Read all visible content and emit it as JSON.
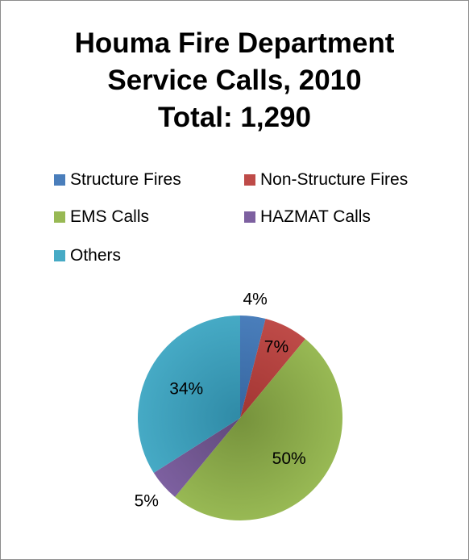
{
  "chart_data": {
    "type": "pie",
    "title_lines": [
      "Houma Fire Department",
      "Service Calls, 2010",
      "Total: 1,290"
    ],
    "categories": [
      "Structure Fires",
      "Non-Structure Fires",
      "EMS Calls",
      "HAZMAT Calls",
      "Others"
    ],
    "values": [
      4,
      7,
      50,
      5,
      34
    ],
    "labels": [
      "4%",
      "7%",
      "50%",
      "5%",
      "34%"
    ],
    "colors": [
      "#4a7ebb",
      "#be4b48",
      "#98b954",
      "#7d60a0",
      "#46aac5"
    ],
    "slice_colors_dark": [
      "#35659f",
      "#a23532",
      "#76923c",
      "#60497a",
      "#2f8aa6"
    ],
    "legend_position": "top"
  }
}
